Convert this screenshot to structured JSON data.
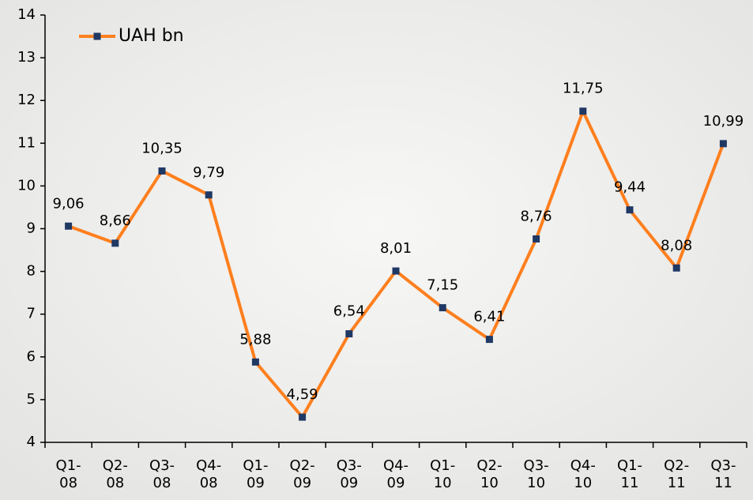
{
  "chart_data": {
    "type": "line",
    "categories": [
      [
        "Q1-",
        "08"
      ],
      [
        "Q2-",
        "08"
      ],
      [
        "Q3-",
        "08"
      ],
      [
        "Q4-",
        "08"
      ],
      [
        "Q1-",
        "09"
      ],
      [
        "Q2-",
        "09"
      ],
      [
        "Q3-",
        "09"
      ],
      [
        "Q4-",
        "09"
      ],
      [
        "Q1-",
        "10"
      ],
      [
        "Q2-",
        "10"
      ],
      [
        "Q3-",
        "10"
      ],
      [
        "Q4-",
        "10"
      ],
      [
        "Q1-",
        "11"
      ],
      [
        "Q2-",
        "11"
      ],
      [
        "Q3-",
        "11"
      ]
    ],
    "series": [
      {
        "name": "UAH bn",
        "color": "#ff7f1e",
        "marker_color": "#1f3864",
        "values": [
          9.06,
          8.66,
          10.35,
          9.79,
          5.88,
          4.59,
          6.54,
          8.01,
          7.15,
          6.41,
          8.76,
          11.75,
          9.44,
          8.08,
          10.99
        ],
        "value_labels": [
          "9,06",
          "8,66",
          "10,35",
          "9,79",
          "5,88",
          "4,59",
          "6,54",
          "8,01",
          "7,15",
          "6,41",
          "8,76",
          "11,75",
          "9,44",
          "8,08",
          "10,99"
        ]
      }
    ],
    "ylim": [
      4,
      14
    ],
    "yticks": [
      4,
      5,
      6,
      7,
      8,
      9,
      10,
      11,
      12,
      13,
      14
    ],
    "legend": "top-left"
  }
}
